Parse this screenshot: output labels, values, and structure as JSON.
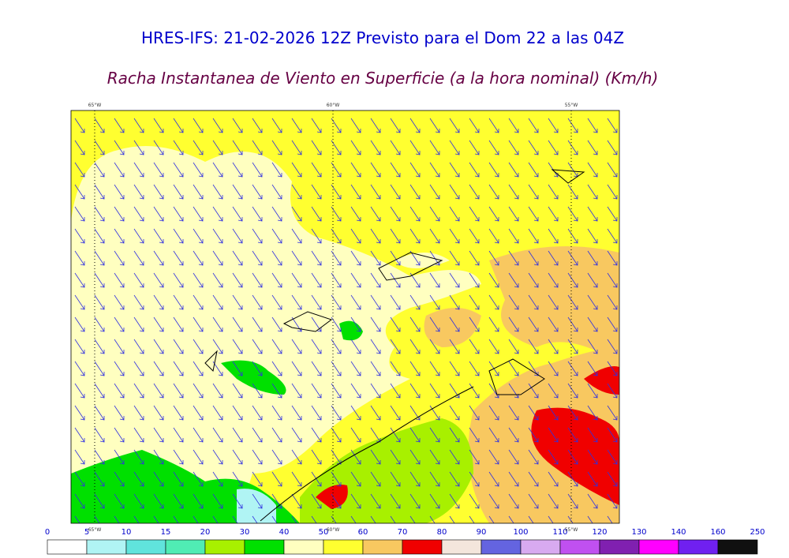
{
  "header": {
    "title": "HRES-IFS: 21-02-2026 12Z Previsto para el Dom 22 a las 04Z",
    "subtitle": "Racha Instantanea de Viento en Superficie (a la hora nominal) (Km/h)"
  },
  "map": {
    "meridians": [
      "65°W",
      "60°W",
      "55°W"
    ]
  },
  "colorbar": {
    "ticks": [
      0,
      5,
      10,
      15,
      20,
      30,
      40,
      50,
      60,
      70,
      80,
      90,
      100,
      110,
      120,
      130,
      140,
      160,
      250
    ],
    "colors": [
      "#ffffff",
      "#b0f4f4",
      "#60e4dc",
      "#50ecb4",
      "#a8f000",
      "#00e000",
      "#ffffc0",
      "#ffff30",
      "#f8c860",
      "#f00000",
      "#f4e6dc",
      "#6464e0",
      "#d8aaf0",
      "#c050f0",
      "#8020b0",
      "#ff00ff",
      "#7020f0",
      "#101010"
    ]
  }
}
